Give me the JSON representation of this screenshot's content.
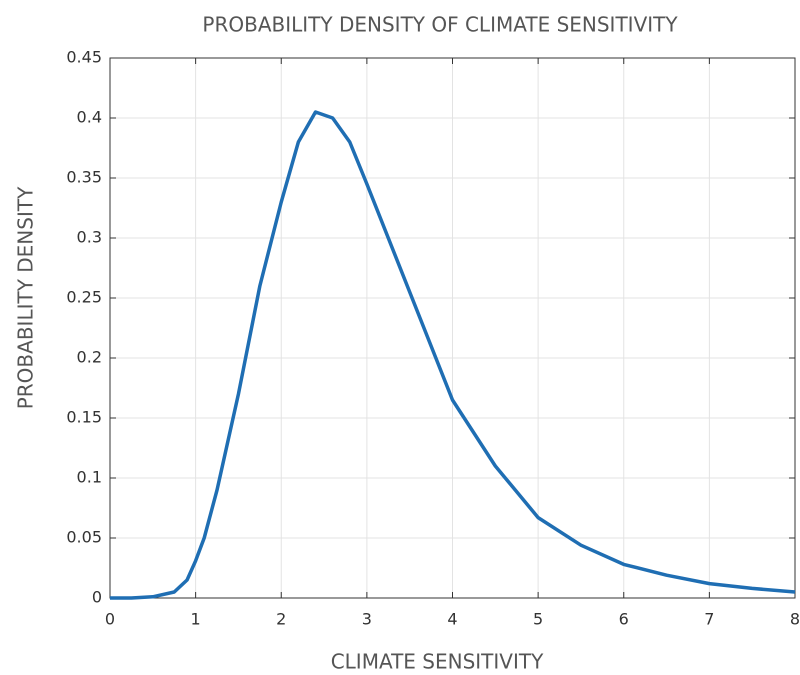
{
  "chart_data": {
    "type": "line",
    "title": "PROBABILITY DENSITY OF CLIMATE SENSITIVITY",
    "x_label": "CLIMATE SENSITIVITY",
    "y_label": "PROBABILITY DENSITY",
    "x": [
      0,
      0.25,
      0.5,
      0.75,
      0.9,
      1.0,
      1.1,
      1.25,
      1.5,
      1.75,
      2.0,
      2.2,
      2.4,
      2.6,
      2.8,
      3.0,
      3.25,
      3.5,
      3.75,
      4.0,
      4.5,
      5.0,
      5.5,
      6.0,
      6.5,
      7.0,
      7.5,
      8.0
    ],
    "series": [
      {
        "color": "#1f6eb3",
        "values": [
          0,
          0,
          0.001,
          0.005,
          0.015,
          0.031,
          0.05,
          0.09,
          0.17,
          0.26,
          0.33,
          0.38,
          0.405,
          0.4,
          0.38,
          0.345,
          0.3,
          0.255,
          0.21,
          0.165,
          0.11,
          0.067,
          0.044,
          0.028,
          0.019,
          0.012,
          0.008,
          0.005
        ]
      }
    ],
    "xlim": [
      0,
      8
    ],
    "ylim": [
      0,
      0.45
    ],
    "xticks": [
      0,
      1,
      2,
      3,
      4,
      5,
      6,
      7,
      8
    ],
    "yticks": [
      0,
      0.05,
      0.1,
      0.15,
      0.2,
      0.25,
      0.3,
      0.35,
      0.4,
      0.45
    ],
    "grid": true
  }
}
